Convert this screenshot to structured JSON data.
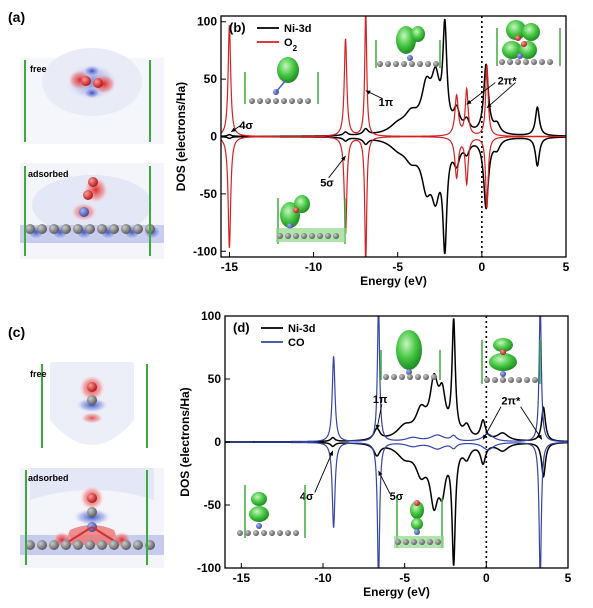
{
  "panels": {
    "a": {
      "label": "(a)",
      "free_label": "free",
      "adsorbed_label": "adsorbed"
    },
    "c": {
      "label": "(c)",
      "free_label": "free",
      "adsorbed_label": "adsorbed"
    }
  },
  "colors": {
    "ni3d": "#000000",
    "o2": "#d62020",
    "co": "#3344aa",
    "density_positive": "#e02020",
    "density_negative": "#2a3fbf",
    "orbital_green": "#3cc83c",
    "atom_grey": "#777777",
    "atom_red": "#dd2222",
    "atom_blue": "#4a63b8",
    "wall_green": "#3daa3d"
  },
  "icons": [
    "charge-density-map",
    "orbital-isosurface",
    "graphene-sheet"
  ],
  "chart_data": [
    {
      "type": "line",
      "panel": "(b)",
      "xlabel": "Energy (eV)",
      "ylabel": "DOS (electrons/Ha)",
      "xlim": [
        -15.5,
        5
      ],
      "ylim": [
        -105,
        105
      ],
      "xticks": [
        -15,
        -10,
        -5,
        0,
        5
      ],
      "yticks": [
        -100,
        -50,
        0,
        50,
        100
      ],
      "fermi_level": 0,
      "legend": {
        "placement": "top-left",
        "entries": [
          {
            "name": "Ni-3d",
            "color": "#000000"
          },
          {
            "name": "O2",
            "color": "#d62020"
          }
        ]
      },
      "series": [
        {
          "name": "Ni-3d",
          "color": "#000000",
          "peaks": [
            {
              "e": -15.0,
              "h": 1.5,
              "w": 0.14
            },
            {
              "e": -8.1,
              "h": 3,
              "w": 0.15
            },
            {
              "e": -6.9,
              "h": 5,
              "w": 0.17
            },
            {
              "e": -5.0,
              "h": 7,
              "w": 0.6
            },
            {
              "e": -4.2,
              "h": 15,
              "w": 0.5
            },
            {
              "e": -3.3,
              "h": 36,
              "w": 0.35
            },
            {
              "e": -2.75,
              "h": 42,
              "w": 0.3
            },
            {
              "e": -2.2,
              "h": 86,
              "w": 0.14
            },
            {
              "e": -1.5,
              "h": 18,
              "w": 0.22
            },
            {
              "e": -0.9,
              "h": 10,
              "w": 0.2
            },
            {
              "e": 0.25,
              "h": 60,
              "w": 0.17
            },
            {
              "e": 0.9,
              "h": 8,
              "w": 0.22
            },
            {
              "e": 3.3,
              "h": 25,
              "w": 0.14
            }
          ]
        },
        {
          "name": "O2",
          "color": "#d62020",
          "peaks": [
            {
              "e": -15.0,
              "h": 97,
              "w": 0.09
            },
            {
              "e": -8.1,
              "h": 85,
              "w": 0.09
            },
            {
              "e": -6.9,
              "h": 110,
              "w": 0.07
            },
            {
              "e": -1.5,
              "h": 35,
              "w": 0.12
            },
            {
              "e": -0.9,
              "h": 40,
              "w": 0.1
            },
            {
              "e": 0.3,
              "h": 62,
              "w": 0.09
            }
          ]
        }
      ],
      "annotations": [
        {
          "text": "4σ",
          "at": [
            -14.0,
            10
          ]
        },
        {
          "text": "5σ",
          "at": [
            -9.2,
            -40
          ]
        },
        {
          "text": "1π",
          "at": [
            -5.7,
            30
          ]
        },
        {
          "text": "2π*",
          "at": [
            1.5,
            49
          ]
        }
      ]
    },
    {
      "type": "line",
      "panel": "(d)",
      "xlabel": "Energy (eV)",
      "ylabel": "DOS (electrons/Ha)",
      "xlim": [
        -16,
        5
      ],
      "ylim": [
        -100,
        100
      ],
      "xticks": [
        -15,
        -10,
        -5,
        0,
        5
      ],
      "yticks": [
        -100,
        -50,
        0,
        50,
        100
      ],
      "fermi_level": 0,
      "legend": {
        "placement": "top-left",
        "entries": [
          {
            "name": "Ni-3d",
            "color": "#000000"
          },
          {
            "name": "CO",
            "color": "#3344aa"
          }
        ]
      },
      "series": [
        {
          "name": "Ni-3d",
          "color": "#000000",
          "peaks": [
            {
              "e": -9.4,
              "h": 3,
              "w": 0.15
            },
            {
              "e": -6.7,
              "h": 9,
              "w": 0.22
            },
            {
              "e": -5.0,
              "h": 10,
              "w": 0.6
            },
            {
              "e": -4.0,
              "h": 20,
              "w": 0.4
            },
            {
              "e": -3.2,
              "h": 42,
              "w": 0.3
            },
            {
              "e": -2.7,
              "h": 30,
              "w": 0.25
            },
            {
              "e": -2.0,
              "h": 90,
              "w": 0.12
            },
            {
              "e": -1.2,
              "h": 10,
              "w": 0.25
            },
            {
              "e": -0.2,
              "h": 15,
              "w": 0.18
            },
            {
              "e": 1.0,
              "h": 6,
              "w": 0.4
            },
            {
              "e": 3.5,
              "h": 27,
              "w": 0.14
            }
          ]
        },
        {
          "name": "CO",
          "color": "#3344aa",
          "peaks": [
            {
              "e": -9.35,
              "h": 68,
              "w": 0.1
            },
            {
              "e": -6.6,
              "h": 110,
              "w": 0.08
            },
            {
              "e": -4.5,
              "h": 3,
              "w": 0.5
            },
            {
              "e": -3.0,
              "h": 5,
              "w": 0.5
            },
            {
              "e": -2.0,
              "h": 4,
              "w": 0.2
            },
            {
              "e": 0.1,
              "h": 6,
              "w": 0.4
            },
            {
              "e": 3.3,
              "h": 110,
              "w": 0.08
            }
          ]
        }
      ],
      "annotations": [
        {
          "text": "1π",
          "at": [
            -6.5,
            34
          ]
        },
        {
          "text": "2π*",
          "at": [
            1.5,
            33
          ]
        },
        {
          "text": "4σ",
          "at": [
            -11.0,
            -43
          ]
        },
        {
          "text": "5σ",
          "at": [
            -5.5,
            -43
          ]
        }
      ]
    }
  ]
}
